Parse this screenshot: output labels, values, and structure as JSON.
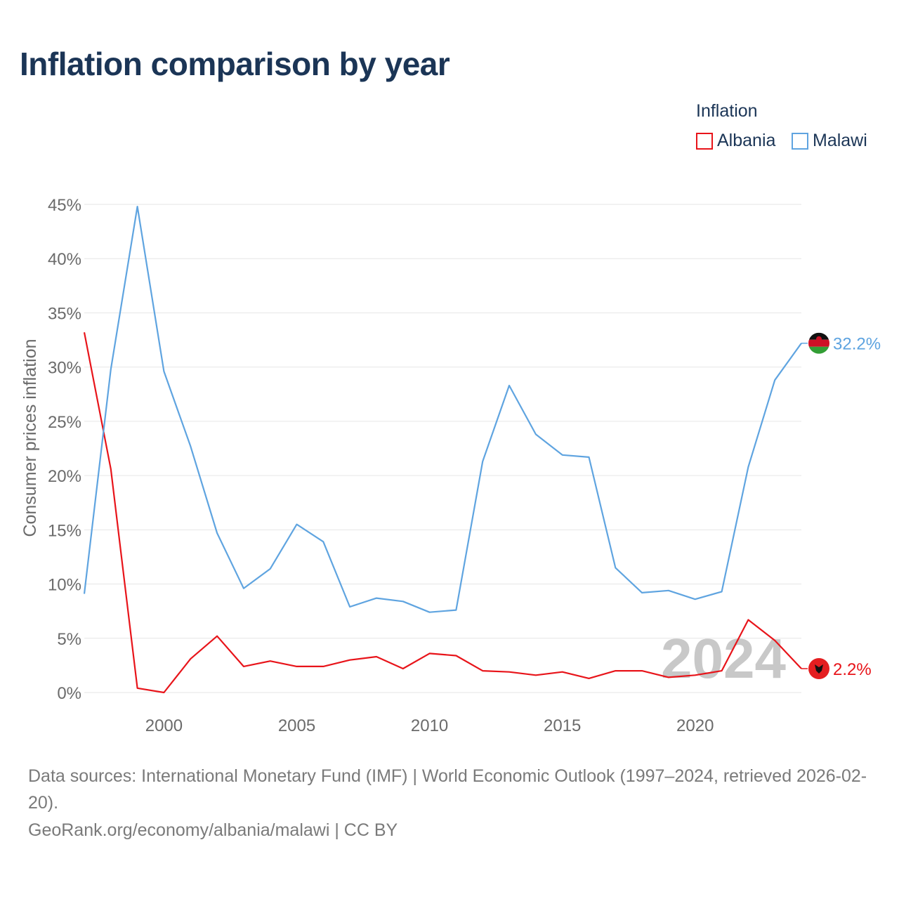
{
  "title": "Inflation comparison by year",
  "legend": {
    "title": "Inflation",
    "items": [
      {
        "label": "Albania",
        "color": "#e8141a"
      },
      {
        "label": "Malawi",
        "color": "#5fa4e0"
      }
    ]
  },
  "chart_data": {
    "type": "line",
    "title": "Inflation comparison by year",
    "xlabel": "",
    "ylabel": "Consumer prices inflation",
    "xlim": [
      1997,
      2024
    ],
    "ylim": [
      0,
      45
    ],
    "xticks": [
      2000,
      2005,
      2010,
      2015,
      2020
    ],
    "yticks": [
      0,
      5,
      10,
      15,
      20,
      25,
      30,
      35,
      40,
      45
    ],
    "ytick_labels": [
      "0%",
      "5%",
      "10%",
      "15%",
      "20%",
      "25%",
      "30%",
      "35%",
      "40%",
      "45%"
    ],
    "grid": true,
    "x": [
      1997,
      1998,
      1999,
      2000,
      2001,
      2002,
      2003,
      2004,
      2005,
      2006,
      2007,
      2008,
      2009,
      2010,
      2011,
      2012,
      2013,
      2014,
      2015,
      2016,
      2017,
      2018,
      2019,
      2020,
      2021,
      2022,
      2023,
      2024
    ],
    "series": [
      {
        "name": "Albania",
        "color": "#e8141a",
        "values": [
          33.2,
          20.6,
          0.4,
          0.0,
          3.1,
          5.2,
          2.4,
          2.9,
          2.4,
          2.4,
          3.0,
          3.3,
          2.2,
          3.6,
          3.4,
          2.0,
          1.9,
          1.6,
          1.9,
          1.3,
          2.0,
          2.0,
          1.4,
          1.6,
          2.0,
          6.7,
          4.8,
          2.2
        ],
        "end_label": "2.2%",
        "flag_icon": "albania-flag-icon"
      },
      {
        "name": "Malawi",
        "color": "#5fa4e0",
        "values": [
          9.1,
          29.8,
          44.8,
          29.6,
          22.7,
          14.7,
          9.6,
          11.4,
          15.5,
          13.9,
          7.9,
          8.7,
          8.4,
          7.4,
          7.6,
          21.3,
          28.3,
          23.8,
          21.9,
          21.7,
          11.5,
          9.2,
          9.4,
          8.6,
          9.3,
          20.8,
          28.8,
          32.2
        ],
        "end_label": "32.2%",
        "flag_icon": "malawi-flag-icon"
      }
    ],
    "annotations": [
      {
        "text": "2024",
        "kind": "year-watermark"
      }
    ]
  },
  "footer": {
    "source": "Data sources: International Monetary Fund (IMF) | World Economic Outlook (1997–2024, retrieved 2026-02-20).",
    "url": "GeoRank.org/economy/albania/malawi | CC BY"
  }
}
